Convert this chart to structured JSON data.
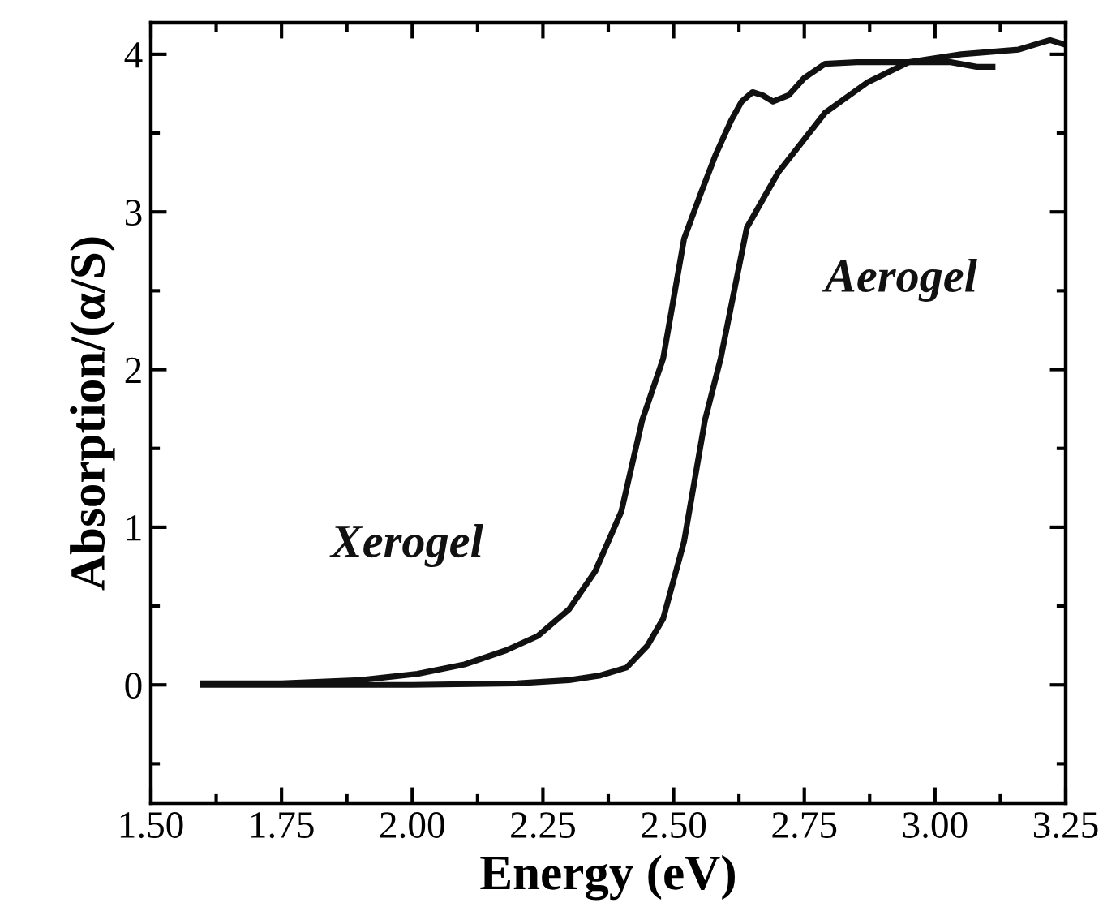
{
  "chart_data": {
    "type": "line",
    "xlabel": "Energy (eV)",
    "ylabel": "Absorption/(α/S)",
    "xlim": [
      1.5,
      3.25
    ],
    "xticks": [
      {
        "value": 1.5,
        "label": "1.50"
      },
      1.75,
      {
        "value": 2.0,
        "label": "2.00"
      },
      2.25,
      {
        "value": 2.5,
        "label": "2.50"
      },
      2.75,
      {
        "value": 3.0,
        "label": "3.00"
      },
      3.25
    ],
    "ylim": [
      -0.75,
      4.2
    ],
    "yticks": [
      0,
      1,
      2,
      3,
      4
    ],
    "grid": false,
    "legend": false,
    "marker": "none",
    "line_style": "solid",
    "series": [
      {
        "name": "Xerogel",
        "color": "#111111",
        "x": [
          1.6,
          1.75,
          1.9,
          2.01,
          2.1,
          2.18,
          2.24,
          2.3,
          2.35,
          2.4,
          2.44,
          2.48,
          2.52,
          2.55,
          2.58,
          2.61,
          2.63,
          2.651,
          2.67,
          2.69,
          2.72,
          2.75,
          2.79,
          2.85,
          2.95,
          3.03,
          3.08,
          3.11
        ],
        "values": [
          0.01,
          0.01,
          0.03,
          0.07,
          0.13,
          0.22,
          0.31,
          0.48,
          0.72,
          1.1,
          1.68,
          2.07,
          2.83,
          3.1,
          3.36,
          3.58,
          3.7,
          3.76,
          3.74,
          3.7,
          3.74,
          3.85,
          3.94,
          3.95,
          3.95,
          3.95,
          3.92,
          3.92
        ]
      },
      {
        "name": "Aerogel",
        "color": "#111111",
        "x": [
          1.6,
          1.8,
          2.0,
          2.2,
          2.3,
          2.36,
          2.41,
          2.45,
          2.48,
          2.52,
          2.56,
          2.59,
          2.64,
          2.7,
          2.79,
          2.87,
          2.95,
          3.05,
          3.16,
          3.22,
          3.25
        ],
        "values": [
          0.0,
          0.0,
          0.0,
          0.01,
          0.03,
          0.06,
          0.11,
          0.25,
          0.42,
          0.91,
          1.68,
          2.07,
          2.9,
          3.25,
          3.63,
          3.82,
          3.95,
          4.0,
          4.03,
          4.09,
          4.06
        ]
      }
    ]
  }
}
